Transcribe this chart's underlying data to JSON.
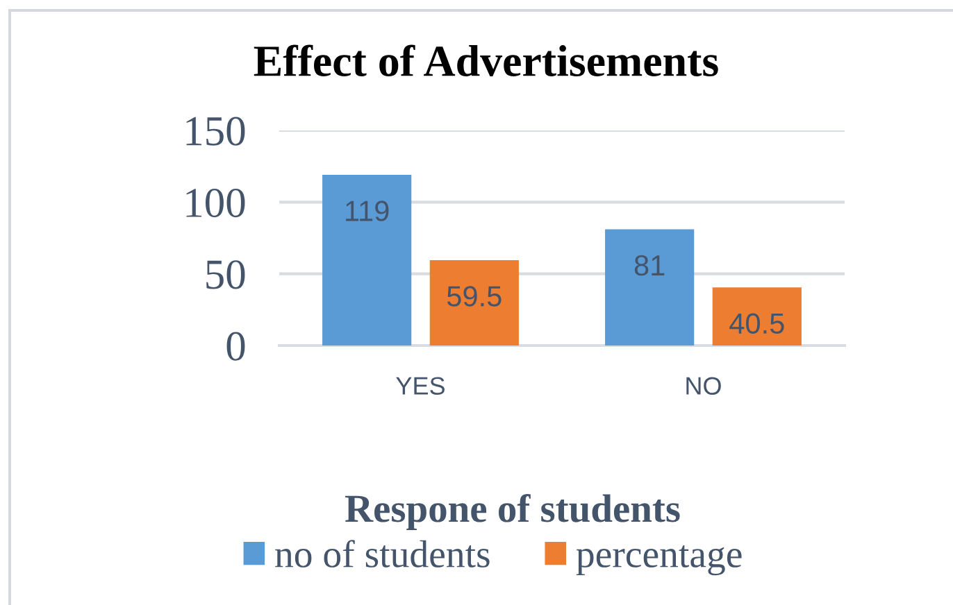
{
  "chart_data": {
    "type": "bar",
    "title": "Effect of Advertisements",
    "xlabel": "Respone of students",
    "categories": [
      "YES",
      "NO"
    ],
    "series": [
      {
        "name": "no of students",
        "color": "#5b9bd5",
        "values": [
          119,
          81
        ]
      },
      {
        "name": "percentage",
        "color": "#ed7d31",
        "values": [
          59.5,
          40.5
        ]
      }
    ],
    "ylim": [
      0,
      150
    ],
    "yticks": [
      0,
      50,
      100,
      150
    ],
    "grid": "y",
    "legend": "bottom",
    "data_labels": true
  }
}
